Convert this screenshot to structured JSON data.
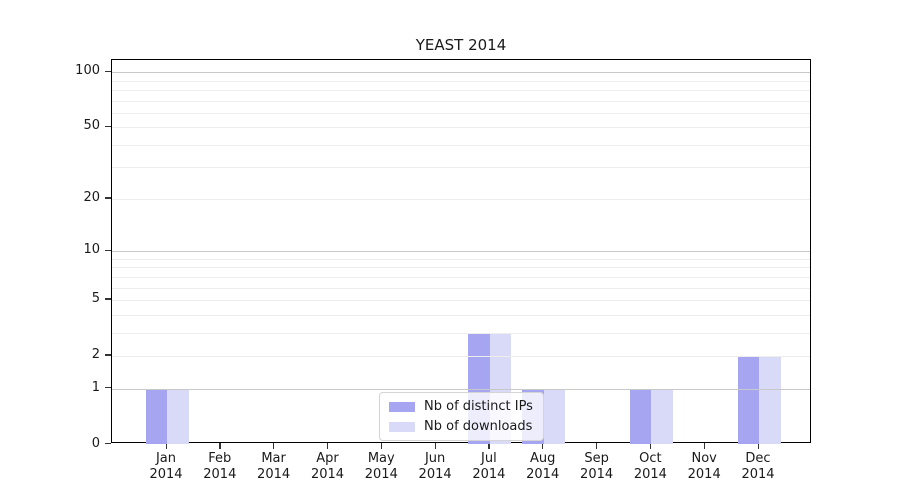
{
  "page": {
    "background": "#ffffff"
  },
  "chart": {
    "title": "YEAST 2014",
    "legend": {
      "items": [
        {
          "label": "Nb of distinct IPs",
          "color": "#a5a5f1"
        },
        {
          "label": "Nb of downloads",
          "color": "#d9d9f8"
        }
      ]
    }
  },
  "chart_data": {
    "type": "bar",
    "title": "YEAST 2014",
    "categories": [
      "Jan 2014",
      "Feb 2014",
      "Mar 2014",
      "Apr 2014",
      "May 2014",
      "Jun 2014",
      "Jul 2014",
      "Aug 2014",
      "Sep 2014",
      "Oct 2014",
      "Nov 2014",
      "Dec 2014"
    ],
    "series": [
      {
        "name": "Nb of distinct IPs",
        "color": "#a5a5f1",
        "values": [
          1,
          0,
          0,
          0,
          0,
          0,
          3,
          1,
          0,
          1,
          0,
          2
        ]
      },
      {
        "name": "Nb of downloads",
        "color": "#d9d9f8",
        "values": [
          1,
          0,
          0,
          0,
          0,
          0,
          3,
          1,
          0,
          1,
          0,
          2
        ]
      }
    ],
    "xlabel": "",
    "ylabel": "",
    "yscale": "log1p",
    "ylim": [
      0,
      117
    ],
    "yticks": [
      0,
      1,
      2,
      5,
      10,
      20,
      50,
      100
    ],
    "grid": true,
    "gridlines": {
      "major": [
        1,
        10,
        100
      ],
      "minor": [
        2,
        3,
        4,
        5,
        6,
        7,
        8,
        9,
        20,
        30,
        40,
        50,
        60,
        70,
        80,
        90
      ]
    },
    "grid_colors": {
      "major": "#c8c8c8",
      "minor": "#ededed"
    },
    "legend_position": "lower center"
  }
}
